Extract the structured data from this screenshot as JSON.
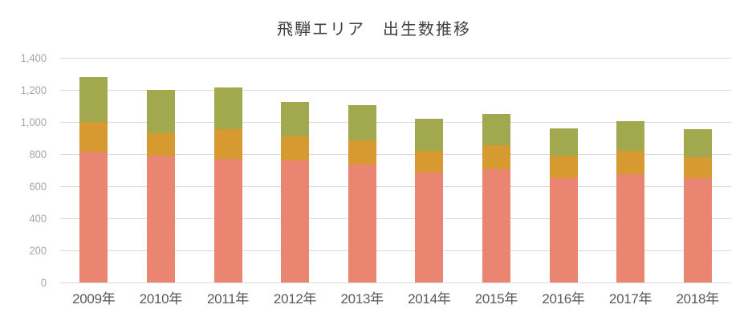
{
  "chart_data": {
    "type": "bar",
    "stacked": true,
    "title": "飛騨エリア　出生数推移",
    "categories": [
      "2009年",
      "2010年",
      "2011年",
      "2012年",
      "2013年",
      "2014年",
      "2015年",
      "2016年",
      "2017年",
      "2018年"
    ],
    "series": [
      {
        "id": "segment-bottom",
        "color": "#EA8571",
        "values": [
          815,
          790,
          770,
          760,
          735,
          685,
          705,
          650,
          675,
          650
        ]
      },
      {
        "id": "segment-middle",
        "color": "#D69A30",
        "values": [
          185,
          140,
          185,
          150,
          150,
          135,
          150,
          140,
          145,
          130
        ]
      },
      {
        "id": "segment-top",
        "color": "#A2A84E",
        "values": [
          280,
          270,
          260,
          215,
          220,
          200,
          195,
          170,
          185,
          175
        ]
      }
    ],
    "stack_totals": [
      1280,
      1200,
      1215,
      1125,
      1105,
      1020,
      1050,
      960,
      1005,
      955
    ],
    "y_axis": {
      "min": 0,
      "max": 1400,
      "tick_step": 200,
      "tick_labels": [
        "0",
        "200",
        "400",
        "600",
        "800",
        "1,000",
        "1,200",
        "1,400"
      ]
    },
    "legend": "none",
    "gridlines": "horizontal"
  },
  "styles": {
    "title_color": "#414141",
    "y_label_color": "#A6A6A6",
    "x_label_color": "#595959",
    "gridline_color": "#D9D9D9",
    "axis_line_color": "#D9D9D9"
  }
}
